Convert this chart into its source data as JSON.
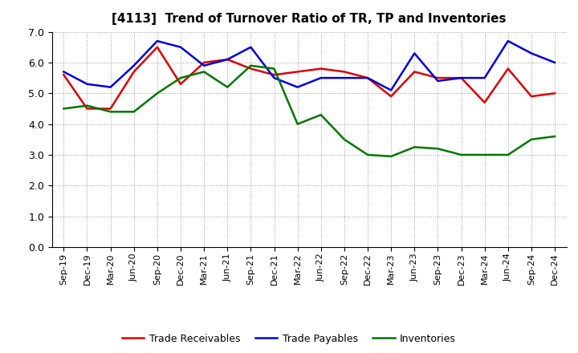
{
  "title": "[4113]  Trend of Turnover Ratio of TR, TP and Inventories",
  "labels": [
    "Sep-19",
    "Dec-19",
    "Mar-20",
    "Jun-20",
    "Sep-20",
    "Dec-20",
    "Mar-21",
    "Jun-21",
    "Sep-21",
    "Dec-21",
    "Mar-22",
    "Jun-22",
    "Sep-22",
    "Dec-22",
    "Mar-23",
    "Jun-23",
    "Sep-23",
    "Dec-23",
    "Mar-24",
    "Jun-24",
    "Sep-24",
    "Dec-24"
  ],
  "trade_receivables": [
    5.6,
    4.5,
    4.5,
    5.7,
    6.5,
    5.3,
    6.0,
    6.1,
    5.8,
    5.6,
    5.7,
    5.8,
    5.7,
    5.5,
    4.9,
    5.7,
    5.5,
    5.5,
    4.7,
    5.8,
    4.9,
    5.0
  ],
  "trade_payables": [
    5.7,
    5.3,
    5.2,
    5.9,
    6.7,
    6.5,
    5.9,
    6.1,
    6.5,
    5.5,
    5.2,
    5.5,
    5.5,
    5.5,
    5.1,
    6.3,
    5.4,
    5.5,
    5.5,
    6.7,
    6.3,
    6.0
  ],
  "inventories": [
    4.5,
    4.6,
    4.4,
    4.4,
    5.0,
    5.5,
    5.7,
    5.2,
    5.9,
    5.8,
    4.0,
    4.3,
    3.5,
    3.0,
    2.95,
    3.25,
    3.2,
    3.0,
    3.0,
    3.0,
    3.5,
    3.6
  ],
  "tr_color": "#dd0000",
  "tp_color": "#0000dd",
  "inv_color": "#007700",
  "ylim": [
    0.0,
    7.0
  ],
  "yticks": [
    0.0,
    1.0,
    2.0,
    3.0,
    4.0,
    5.0,
    6.0,
    7.0
  ],
  "legend_labels": [
    "Trade Receivables",
    "Trade Payables",
    "Inventories"
  ],
  "bg_color": "#ffffff",
  "plot_bg_color": "#ffffff"
}
